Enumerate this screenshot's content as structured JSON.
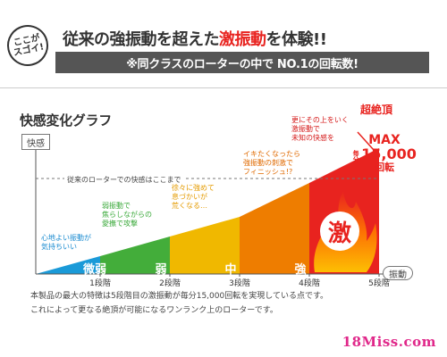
{
  "badge": {
    "line1": "ここが",
    "line2": "スゴイ!"
  },
  "headline": {
    "pre": "従来の強振動を超えた",
    "accent": "激振動",
    "post": "を体験!!"
  },
  "subheadline": "※同クラスのローターの中で NO.1の回転数!",
  "graph": {
    "title": "快感変化グラフ",
    "y_axis_label": "快感",
    "x_axis_label": "振動",
    "baseline_text": "従来のローターでの快感はここまで",
    "steps": [
      {
        "label": "微弱",
        "tick": "1段階",
        "color": "#1a9ad8"
      },
      {
        "label": "弱",
        "tick": "2段階",
        "color": "#43ad3a"
      },
      {
        "label": "中",
        "tick": "3段階",
        "color": "#f0b800"
      },
      {
        "label": "強",
        "tick": "4段階",
        "color": "#ee7d00"
      },
      {
        "label": "激",
        "tick": "5段階",
        "color": "#e8231f"
      }
    ],
    "annotations": [
      [
        "心地よい振動が",
        "気持ちいい"
      ],
      [
        "弱振動で",
        "焦らしながらの",
        "愛撫で攻撃"
      ],
      [
        "徐々に強めて",
        "息づかいが",
        "荒くなる…"
      ],
      [
        "イキたくなったら",
        "強振動の刺激で",
        "フィニッシュ!?"
      ],
      [
        "更にその上をいく",
        "激振動で",
        "未知の快感を"
      ]
    ],
    "super_label": "超絶頂",
    "max_label": "MAX",
    "per_minute": "毎分",
    "max_value": "15,000",
    "max_unit": "回転"
  },
  "footer": {
    "line1": "本製品の最大の特徴は5段階目の激振動が毎分15,000回転を実現している点です。",
    "line2": "これによって更なる絶頂が可能になるワンランク上のローターです。"
  },
  "logo": "18Miss.com"
}
